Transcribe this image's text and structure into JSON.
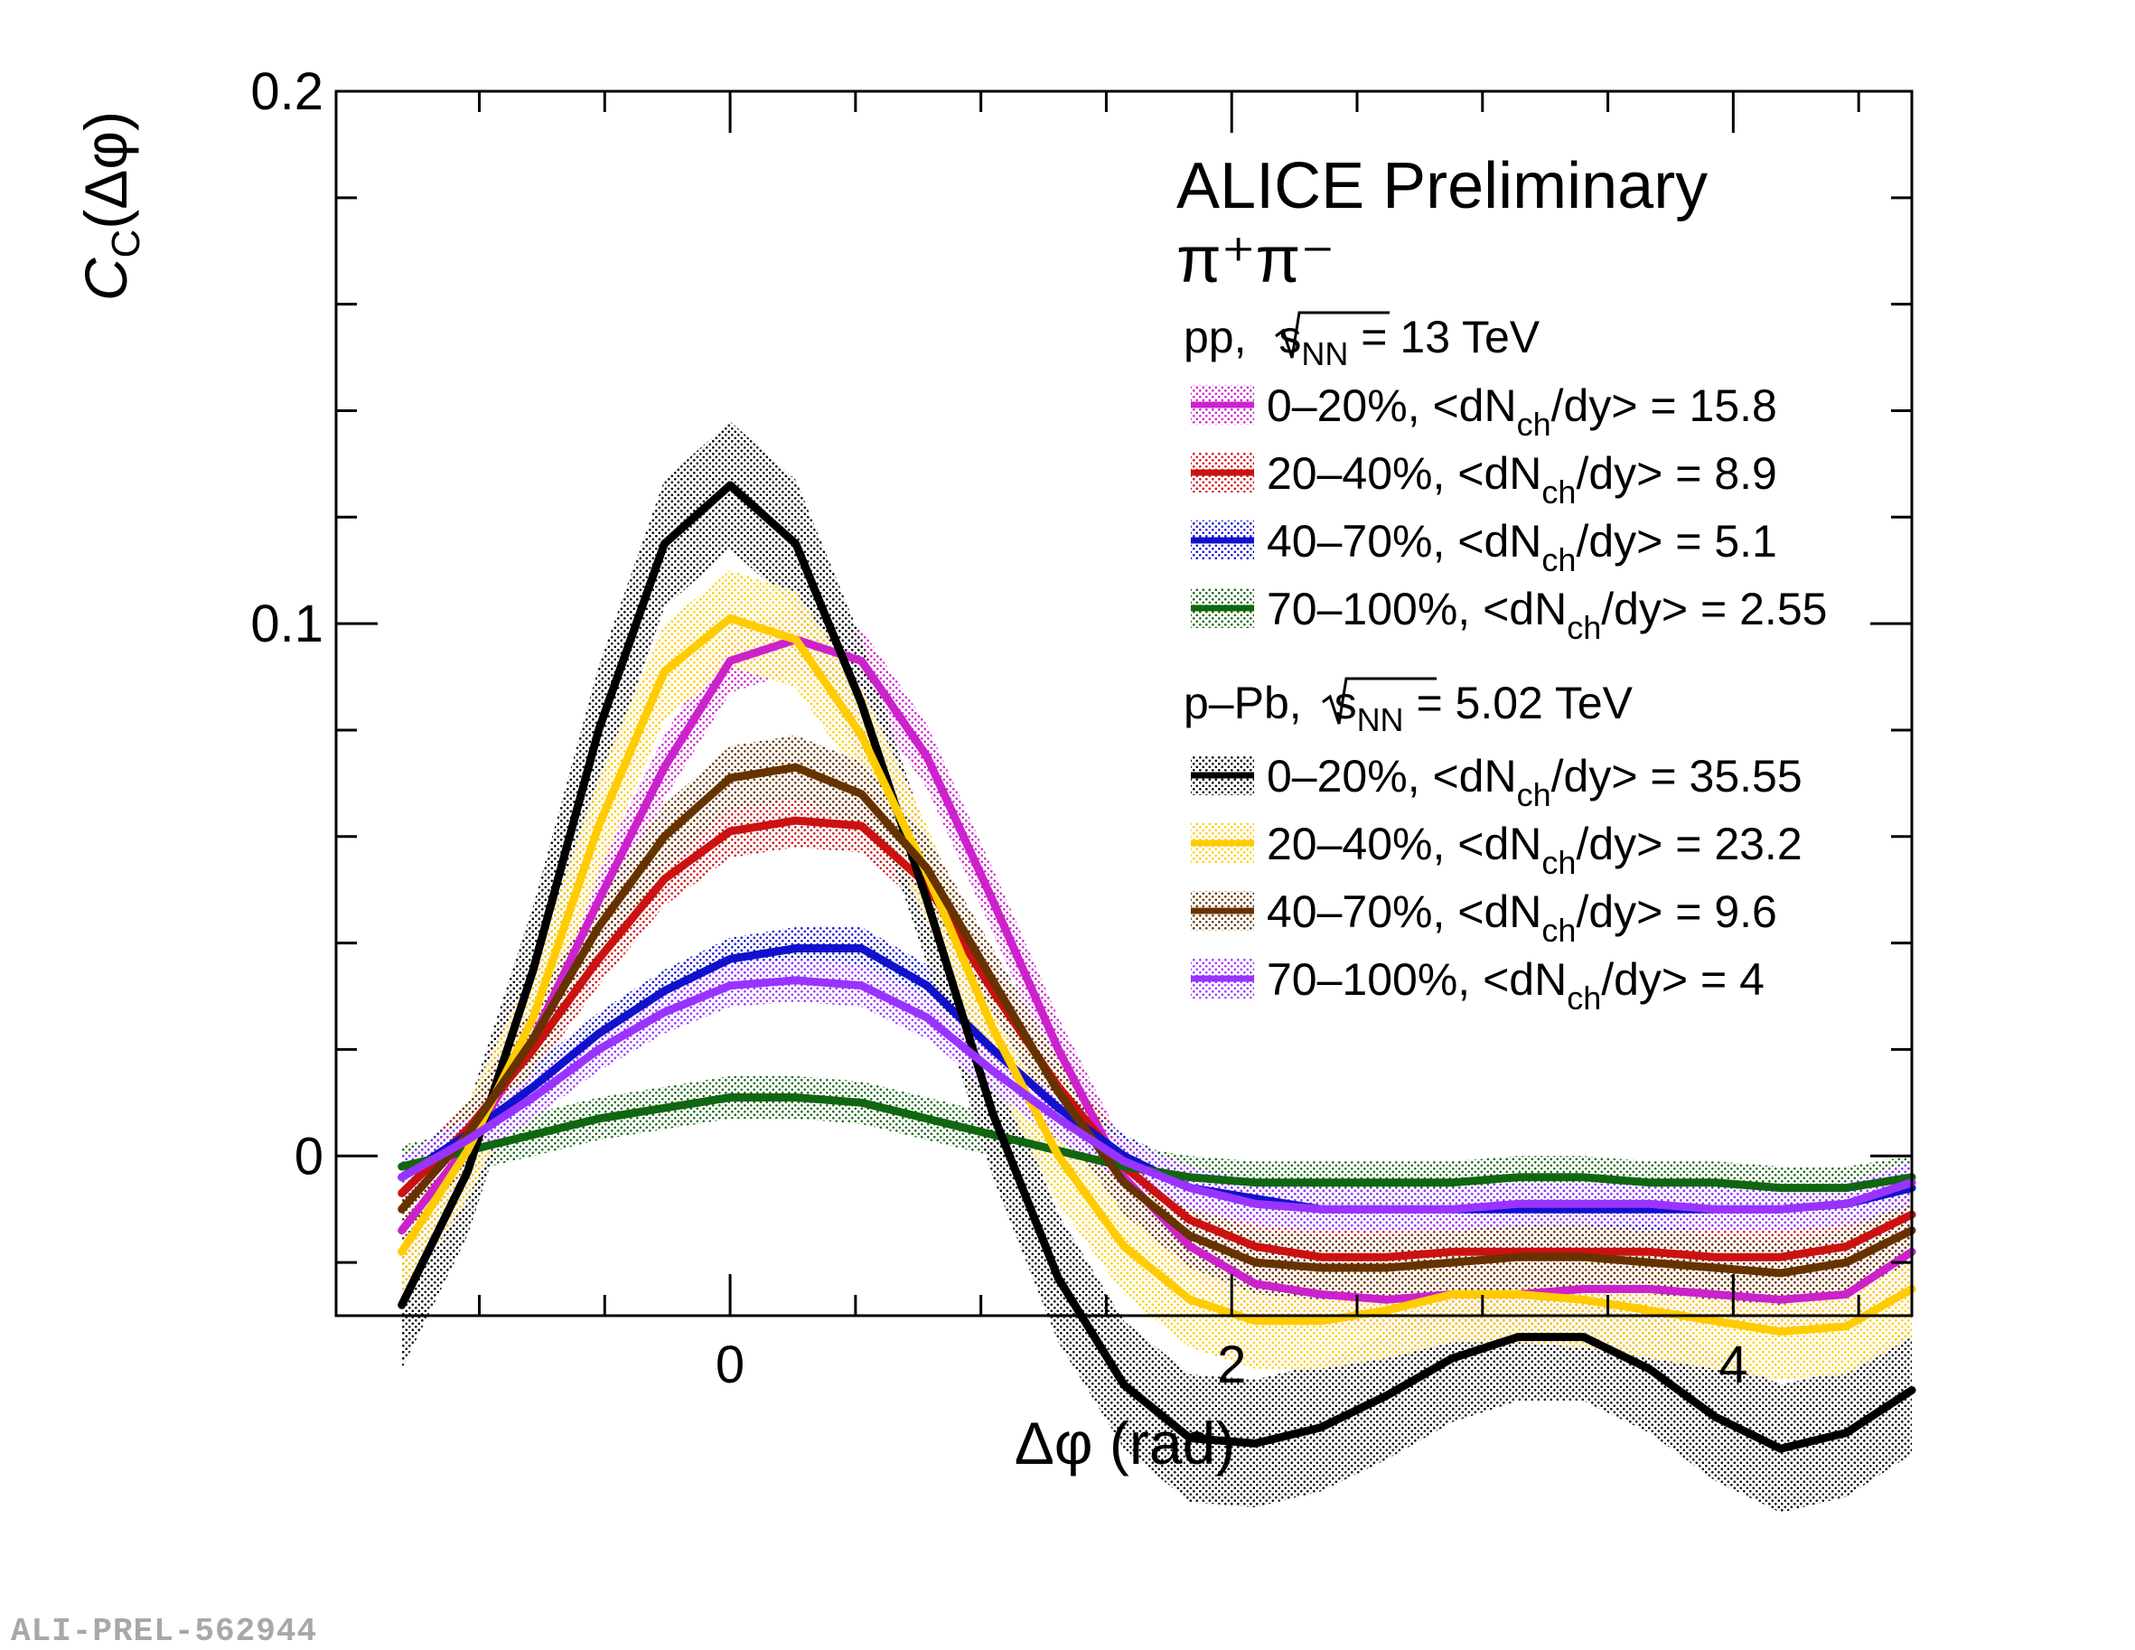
{
  "chart_data": {
    "type": "line",
    "title": "ALICE Preliminary",
    "subtitle": "π⁺π⁻",
    "xlabel": "Δφ (rad)",
    "ylabel": "C_C(Δφ)",
    "ylabel_main": "C",
    "ylabel_sub": "C",
    "ylabel_arg": "(Δφ)",
    "xlim": [
      -1.571,
      4.712
    ],
    "ylim": [
      -0.03,
      0.2
    ],
    "x_ticks": [
      0,
      2,
      4
    ],
    "y_ticks": [
      0,
      0.1,
      0.2
    ],
    "x_tick_labels": [
      "0",
      "2",
      "4"
    ],
    "y_tick_labels": [
      "0",
      "0.1",
      "0.2"
    ],
    "x": [
      -1.309,
      -1.047,
      -0.785,
      -0.524,
      -0.262,
      0.0,
      0.262,
      0.524,
      0.785,
      1.047,
      1.309,
      1.571,
      1.833,
      2.094,
      2.356,
      2.618,
      2.88,
      3.142,
      3.403,
      3.665,
      3.927,
      4.189,
      4.451,
      4.712
    ],
    "legend_groups": [
      {
        "header_prefix": "pp, ",
        "header_sqrt": "s",
        "header_sub": "NN",
        "header_value": " = 13 TeV"
      },
      {
        "header_prefix": "p–Pb, ",
        "header_sqrt": "s",
        "header_sub": "NN",
        "header_value": " = 5.02 TeV"
      }
    ],
    "series": [
      {
        "name": "pp 0–20%",
        "group": 0,
        "label_prefix": "0–20%, <dN",
        "label_sub": "ch",
        "label_suffix": "/dy> = 15.8",
        "color": "#cc22cc",
        "unc": 0.006,
        "values": [
          -0.014,
          0.002,
          0.022,
          0.048,
          0.073,
          0.093,
          0.097,
          0.093,
          0.075,
          0.048,
          0.02,
          -0.004,
          -0.017,
          -0.024,
          -0.026,
          -0.027,
          -0.026,
          -0.026,
          -0.025,
          -0.025,
          -0.026,
          -0.027,
          -0.026,
          -0.018
        ]
      },
      {
        "name": "pp 20–40%",
        "group": 0,
        "label_prefix": "20–40%, <dN",
        "label_sub": "ch",
        "label_suffix": "/dy> = 8.9",
        "color": "#cc1111",
        "unc": 0.005,
        "values": [
          -0.007,
          0.005,
          0.02,
          0.037,
          0.052,
          0.061,
          0.063,
          0.062,
          0.051,
          0.031,
          0.013,
          -0.002,
          -0.012,
          -0.017,
          -0.019,
          -0.019,
          -0.018,
          -0.018,
          -0.018,
          -0.018,
          -0.019,
          -0.019,
          -0.017,
          -0.011
        ]
      },
      {
        "name": "pp 40–70%",
        "group": 0,
        "label_prefix": "40–70%, <dN",
        "label_sub": "ch",
        "label_suffix": "/dy> = 5.1",
        "color": "#1111cc",
        "unc": 0.004,
        "values": [
          -0.004,
          0.004,
          0.013,
          0.023,
          0.031,
          0.037,
          0.039,
          0.039,
          0.032,
          0.02,
          0.009,
          0.0,
          -0.006,
          -0.008,
          -0.01,
          -0.01,
          -0.01,
          -0.01,
          -0.01,
          -0.01,
          -0.01,
          -0.01,
          -0.009,
          -0.006
        ]
      },
      {
        "name": "pp 70–100%",
        "group": 0,
        "label_prefix": "70–100%, <dN",
        "label_sub": "ch",
        "label_suffix": "/dy> = 2.55",
        "color": "#116611",
        "unc": 0.004,
        "values": [
          -0.002,
          0.001,
          0.004,
          0.007,
          0.009,
          0.011,
          0.011,
          0.01,
          0.007,
          0.004,
          0.001,
          -0.002,
          -0.004,
          -0.005,
          -0.005,
          -0.005,
          -0.005,
          -0.004,
          -0.004,
          -0.005,
          -0.005,
          -0.006,
          -0.006,
          -0.004
        ]
      },
      {
        "name": "p–Pb 0–20%",
        "group": 1,
        "label_prefix": "0–20%, <dN",
        "label_sub": "ch",
        "label_suffix": "/dy> = 35.55",
        "color": "#000000",
        "unc": 0.012,
        "values": [
          -0.028,
          -0.003,
          0.035,
          0.08,
          0.115,
          0.126,
          0.115,
          0.085,
          0.048,
          0.008,
          -0.023,
          -0.043,
          -0.053,
          -0.054,
          -0.051,
          -0.045,
          -0.038,
          -0.034,
          -0.034,
          -0.04,
          -0.049,
          -0.055,
          -0.052,
          -0.044
        ]
      },
      {
        "name": "p–Pb 20–40%",
        "group": 1,
        "label_prefix": "20–40%, <dN",
        "label_sub": "ch",
        "label_suffix": "/dy> = 23.2",
        "color": "#ffcc00",
        "unc": 0.009,
        "values": [
          -0.018,
          0.001,
          0.026,
          0.062,
          0.091,
          0.101,
          0.097,
          0.079,
          0.053,
          0.024,
          0.0,
          -0.017,
          -0.027,
          -0.031,
          -0.031,
          -0.029,
          -0.026,
          -0.026,
          -0.027,
          -0.029,
          -0.031,
          -0.033,
          -0.032,
          -0.025
        ]
      },
      {
        "name": "p–Pb 40–70%",
        "group": 1,
        "label_prefix": "40–70%, <dN",
        "label_sub": "ch",
        "label_suffix": "/dy> = 9.6",
        "color": "#663300",
        "unc": 0.006,
        "values": [
          -0.01,
          0.004,
          0.022,
          0.043,
          0.06,
          0.071,
          0.073,
          0.068,
          0.054,
          0.033,
          0.012,
          -0.005,
          -0.015,
          -0.02,
          -0.021,
          -0.021,
          -0.02,
          -0.019,
          -0.019,
          -0.02,
          -0.021,
          -0.022,
          -0.02,
          -0.014
        ]
      },
      {
        "name": "p–Pb 70–100%",
        "group": 1,
        "label_prefix": "70–100%, <dN",
        "label_sub": "ch",
        "label_suffix": "/dy> = 4",
        "color": "#9933ff",
        "unc": 0.004,
        "values": [
          -0.004,
          0.003,
          0.011,
          0.02,
          0.027,
          0.032,
          0.033,
          0.032,
          0.026,
          0.016,
          0.007,
          -0.001,
          -0.006,
          -0.009,
          -0.01,
          -0.01,
          -0.01,
          -0.009,
          -0.009,
          -0.009,
          -0.01,
          -0.01,
          -0.009,
          -0.005
        ]
      }
    ]
  },
  "watermark": "ALI-PREL-562944"
}
